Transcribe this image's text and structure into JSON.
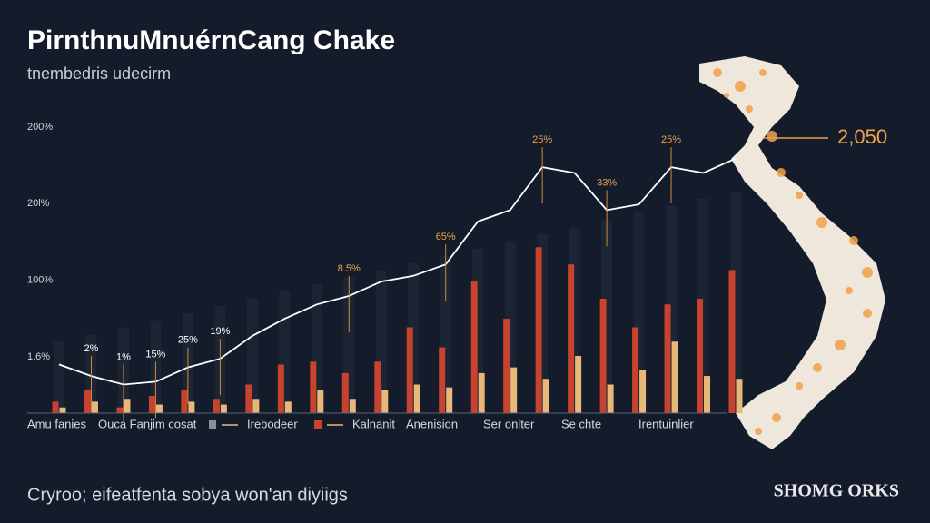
{
  "chart_data": {
    "type": "bar",
    "title": "PirnthnuMnuérnCang Chake",
    "subtitle": "tnembedris udecirm",
    "axis_labels": [
      "200%",
      "20l%",
      "100%",
      "1.6%"
    ],
    "ylim": [
      0,
      100
    ],
    "series": [
      {
        "kind": "bar",
        "color": "#c8432f",
        "values": [
          4,
          8,
          2,
          6,
          8,
          5,
          10,
          17,
          18,
          14,
          18,
          30,
          23,
          46,
          33,
          58,
          52,
          40,
          30,
          38,
          40,
          50
        ]
      },
      {
        "kind": "bar",
        "color": "#e8b77a",
        "values": [
          2,
          4,
          5,
          3,
          4,
          3,
          5,
          4,
          8,
          5,
          8,
          10,
          9,
          14,
          16,
          12,
          20,
          10,
          15,
          25,
          13,
          12
        ]
      },
      {
        "kind": "line",
        "color": "#ffffff",
        "values": [
          17,
          13,
          10,
          11,
          16,
          19,
          27,
          33,
          38,
          41,
          46,
          48,
          52,
          67,
          71,
          86,
          84,
          71,
          73,
          86,
          84,
          89
        ]
      }
    ],
    "annotations": [
      "2%",
      "1%",
      "15%",
      "25%",
      "19%",
      "8.5%",
      "65%",
      "25%",
      "33%",
      "25%"
    ],
    "legend": [
      "Amu fanies",
      "Ouca Fanjim cosat",
      "Irebodeer",
      "Kalnanit",
      "Anenision",
      "Ser onlter",
      "Se chte",
      "Irentuinlier"
    ],
    "callout": "2,050",
    "caption": "Cryroo; eifeatfenta sobya won'an diyiigs",
    "brand": "SHOMG ORKS"
  }
}
